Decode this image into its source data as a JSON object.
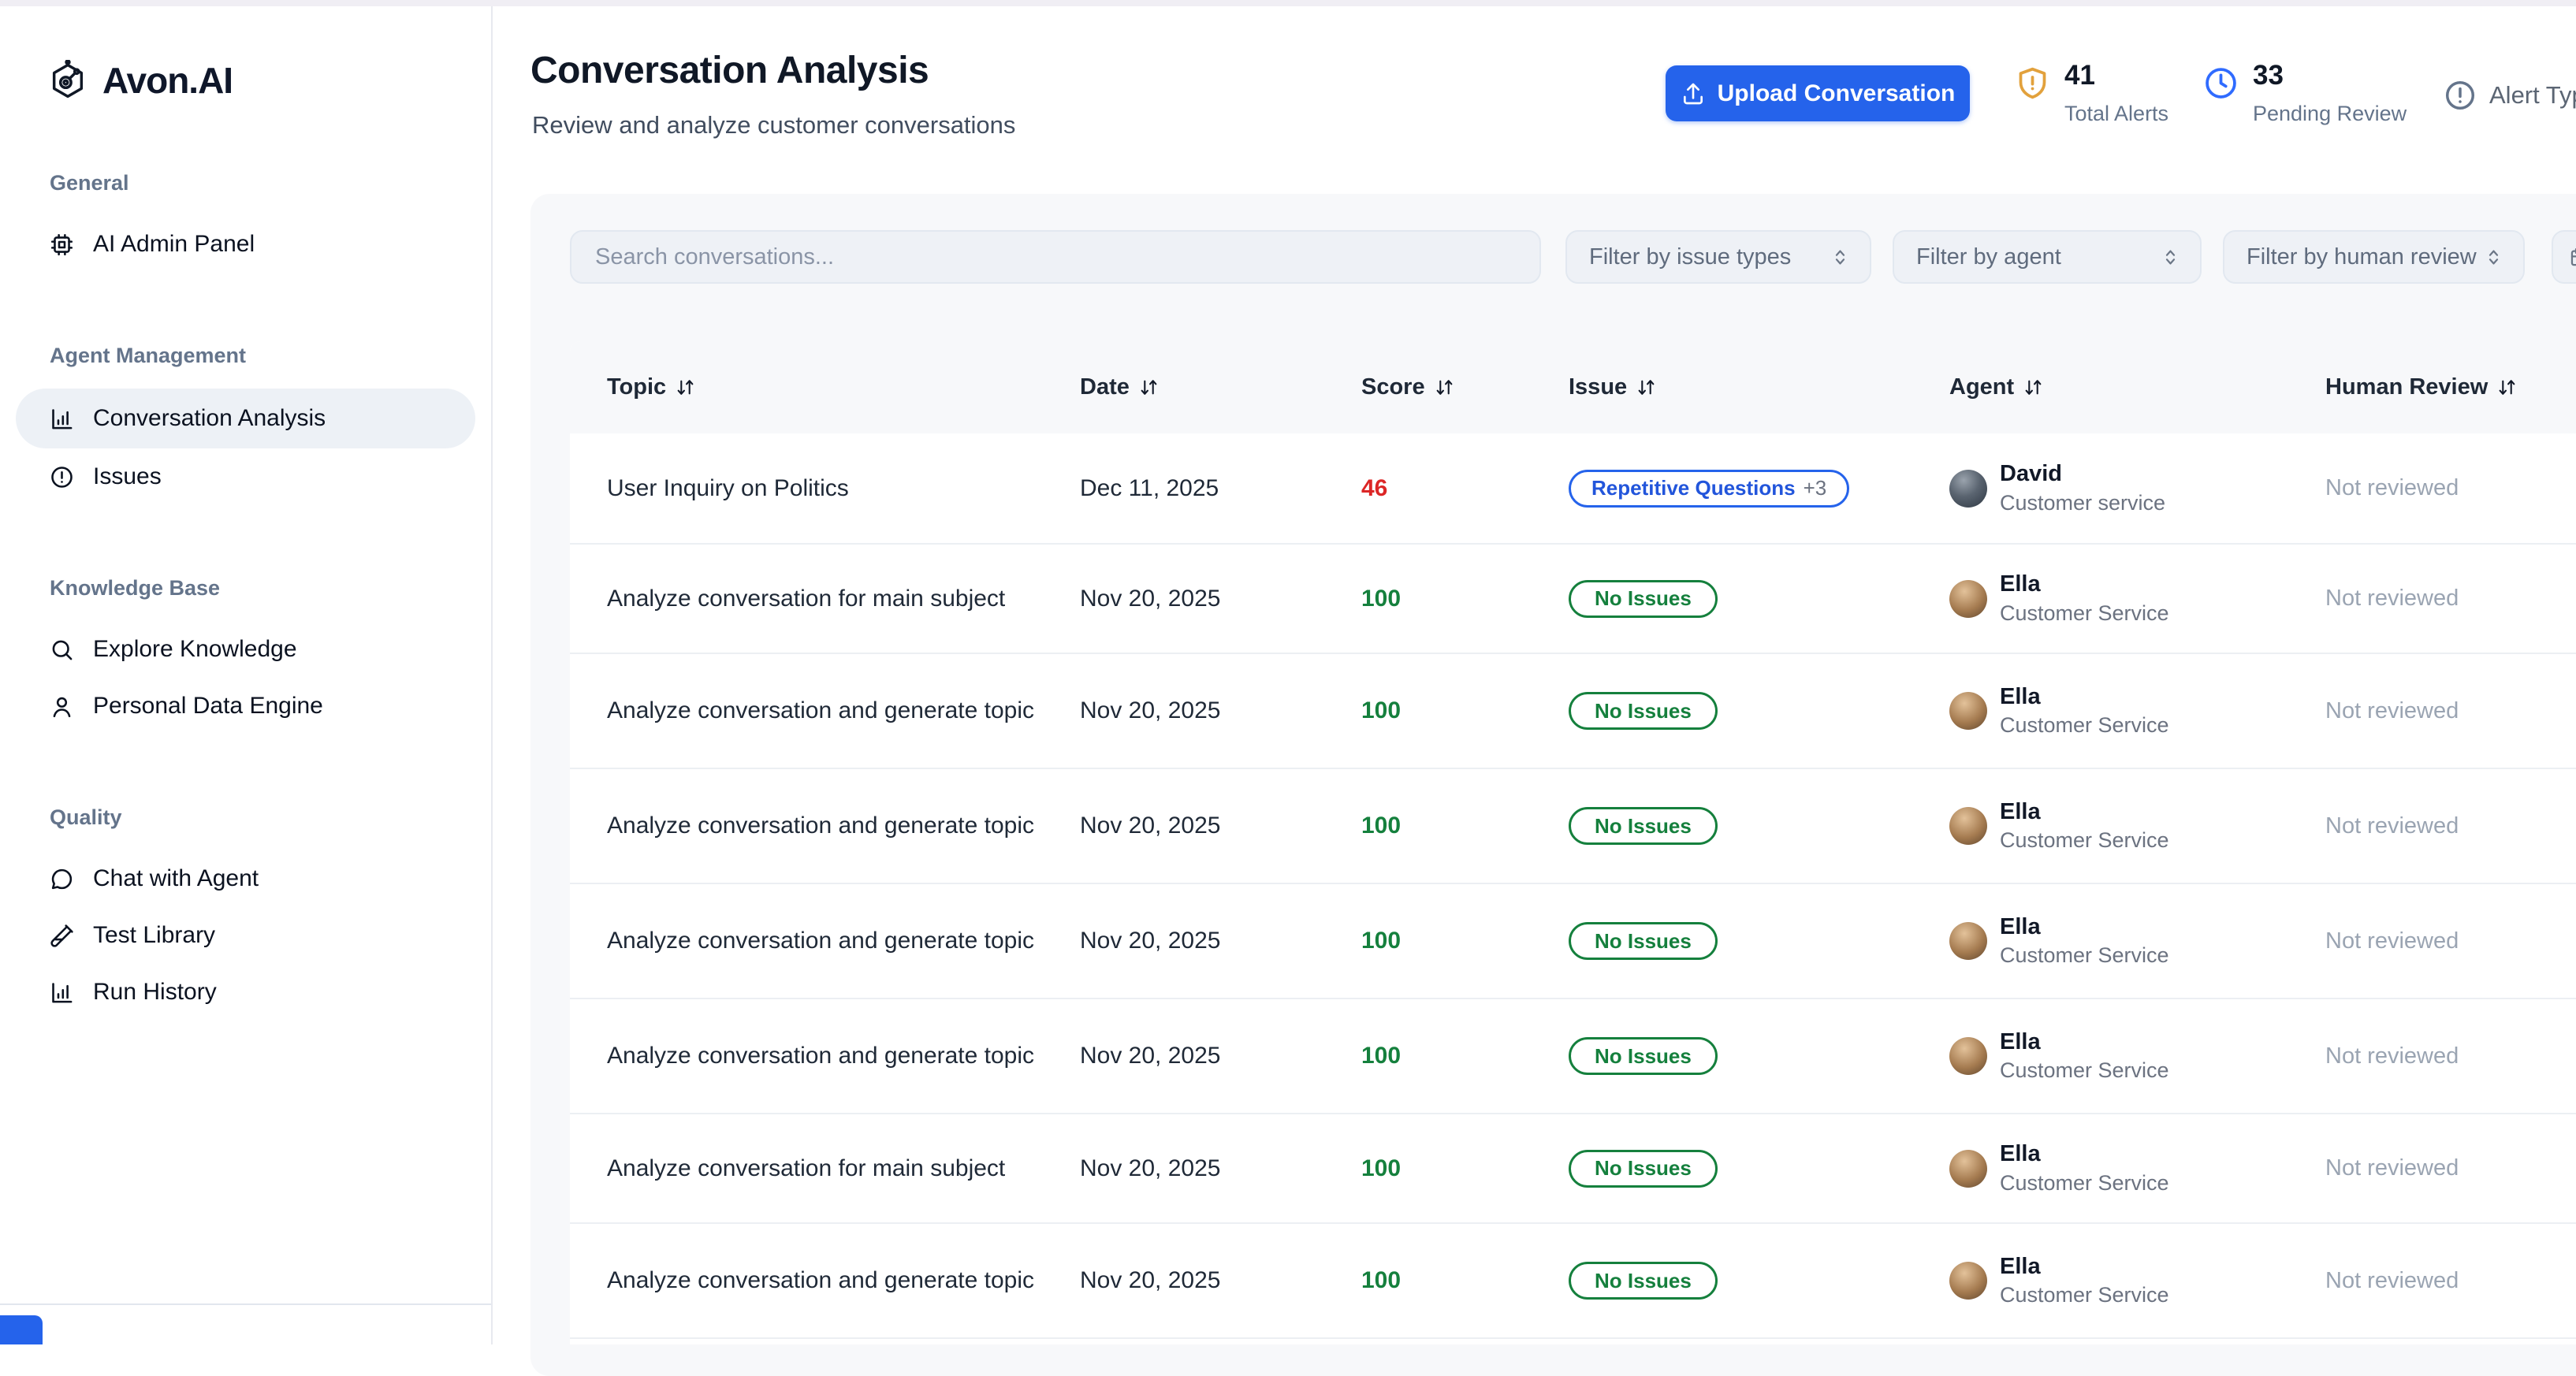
{
  "brand": {
    "name": "Avon.AI",
    "logo_icon": "hexagon-circuit-icon"
  },
  "sidebar": {
    "sections": [
      {
        "label": "General",
        "items": [
          {
            "label": "AI Admin Panel",
            "icon": "cpu-icon",
            "active": false
          }
        ]
      },
      {
        "label": "Agent Management",
        "items": [
          {
            "label": "Conversation Analysis",
            "icon": "bar-chart-icon",
            "active": true
          },
          {
            "label": "Issues",
            "icon": "alert-circle-icon",
            "active": false
          }
        ]
      },
      {
        "label": "Knowledge Base",
        "items": [
          {
            "label": "Explore Knowledge",
            "icon": "search-icon",
            "active": false
          },
          {
            "label": "Personal Data Engine",
            "icon": "user-icon",
            "active": false
          }
        ]
      },
      {
        "label": "Quality",
        "items": [
          {
            "label": "Chat with Agent",
            "icon": "chat-bubble-icon",
            "active": false
          },
          {
            "label": "Test Library",
            "icon": "test-tube-icon",
            "active": false
          },
          {
            "label": "Run History",
            "icon": "bar-chart-icon",
            "active": false
          }
        ]
      }
    ]
  },
  "header": {
    "title": "Conversation Analysis",
    "subtitle": "Review and analyze customer conversations",
    "upload_button": "Upload Conversation",
    "stats": [
      {
        "value": "41",
        "label": "Total Alerts",
        "icon": "shield-alert-icon",
        "color": "#e2a13c"
      },
      {
        "value": "33",
        "label": "Pending Review",
        "icon": "clock-icon",
        "color": "#2f6bff"
      }
    ],
    "alert_type_label": "Alert Type"
  },
  "toolbar": {
    "search_placeholder": "Search conversations...",
    "filters": [
      {
        "label": "Filter by issue types",
        "icon": "chevrons-up-down-icon"
      },
      {
        "label": "Filter by agent",
        "icon": "chevrons-up-down-icon"
      },
      {
        "label": "Filter by human review",
        "icon": "chevrons-up-down-icon"
      },
      {
        "label": "",
        "icon": "calendar-icon"
      }
    ]
  },
  "table": {
    "columns": [
      {
        "label": "Topic",
        "sort_icon": "sort-arrows-icon"
      },
      {
        "label": "Date",
        "sort_icon": "sort-arrows-icon"
      },
      {
        "label": "Score",
        "sort_icon": "sort-arrows-icon"
      },
      {
        "label": "Issue",
        "sort_icon": "sort-arrows-icon"
      },
      {
        "label": "Agent",
        "sort_icon": "sort-arrows-icon"
      },
      {
        "label": "Human Review",
        "sort_icon": "sort-arrows-icon"
      }
    ],
    "rows": [
      {
        "topic": "User Inquiry on Politics",
        "date": "Dec 11, 2025",
        "score": "46",
        "score_tone": "low",
        "issue": {
          "label": "Repetitive Questions",
          "extra": "+3",
          "type": "warning"
        },
        "agent": {
          "name": "David",
          "role": "Customer service",
          "avatar": "david-photo"
        },
        "review": "Not reviewed"
      },
      {
        "topic": "Analyze conversation for main subject",
        "date": "Nov 20, 2025",
        "score": "100",
        "score_tone": "high",
        "issue": {
          "label": "No Issues",
          "extra": "",
          "type": "ok"
        },
        "agent": {
          "name": "Ella",
          "role": "Customer Service",
          "avatar": "ella-photo"
        },
        "review": "Not reviewed"
      },
      {
        "topic": "Analyze conversation and generate topic",
        "date": "Nov 20, 2025",
        "score": "100",
        "score_tone": "high",
        "issue": {
          "label": "No Issues",
          "extra": "",
          "type": "ok"
        },
        "agent": {
          "name": "Ella",
          "role": "Customer Service",
          "avatar": "ella-photo"
        },
        "review": "Not reviewed"
      },
      {
        "topic": "Analyze conversation and generate topic",
        "date": "Nov 20, 2025",
        "score": "100",
        "score_tone": "high",
        "issue": {
          "label": "No Issues",
          "extra": "",
          "type": "ok"
        },
        "agent": {
          "name": "Ella",
          "role": "Customer Service",
          "avatar": "ella-photo"
        },
        "review": "Not reviewed"
      },
      {
        "topic": "Analyze conversation and generate topic",
        "date": "Nov 20, 2025",
        "score": "100",
        "score_tone": "high",
        "issue": {
          "label": "No Issues",
          "extra": "",
          "type": "ok"
        },
        "agent": {
          "name": "Ella",
          "role": "Customer Service",
          "avatar": "ella-photo"
        },
        "review": "Not reviewed"
      },
      {
        "topic": "Analyze conversation and generate topic",
        "date": "Nov 20, 2025",
        "score": "100",
        "score_tone": "high",
        "issue": {
          "label": "No Issues",
          "extra": "",
          "type": "ok"
        },
        "agent": {
          "name": "Ella",
          "role": "Customer Service",
          "avatar": "ella-photo"
        },
        "review": "Not reviewed"
      },
      {
        "topic": "Analyze conversation for main subject",
        "date": "Nov 20, 2025",
        "score": "100",
        "score_tone": "high",
        "issue": {
          "label": "No Issues",
          "extra": "",
          "type": "ok"
        },
        "agent": {
          "name": "Ella",
          "role": "Customer Service",
          "avatar": "ella-photo"
        },
        "review": "Not reviewed"
      },
      {
        "topic": "Analyze conversation and generate topic",
        "date": "Nov 20, 2025",
        "score": "100",
        "score_tone": "high",
        "issue": {
          "label": "No Issues",
          "extra": "",
          "type": "ok"
        },
        "agent": {
          "name": "Ella",
          "role": "Customer Service",
          "avatar": "ella-photo"
        },
        "review": "Not reviewed"
      }
    ]
  },
  "colors": {
    "accent": "#2563eb",
    "score_low": "#dc2626",
    "score_high": "#15803d",
    "warning_icon": "#e2a13c",
    "pending_icon": "#2f6bff",
    "active_item_bg": "#edf1f6"
  }
}
